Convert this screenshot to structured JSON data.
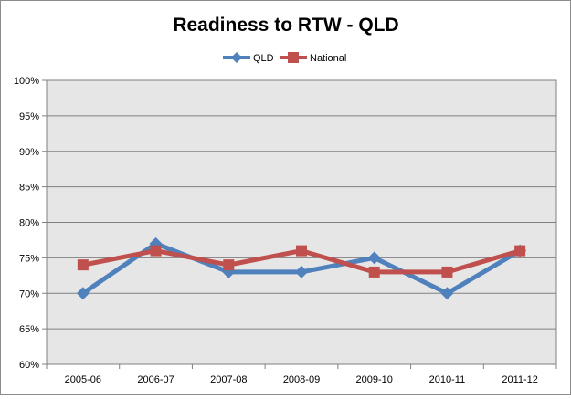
{
  "chart_data": {
    "type": "line",
    "title": "Readiness to RTW - QLD",
    "xlabel": "",
    "ylabel": "",
    "categories": [
      "2005-06",
      "2006-07",
      "2007-08",
      "2008-09",
      "2009-10",
      "2010-11",
      "2011-12"
    ],
    "series": [
      {
        "name": "QLD",
        "values": [
          70,
          77,
          73,
          73,
          75,
          70,
          76
        ],
        "color": "#4F81BD",
        "marker": "diamond"
      },
      {
        "name": "National",
        "values": [
          74,
          76,
          74,
          76,
          73,
          73,
          76
        ],
        "color": "#C0504D",
        "marker": "square"
      }
    ],
    "ylim": [
      60,
      100
    ],
    "y_ticks": [
      "60%",
      "65%",
      "70%",
      "75%",
      "80%",
      "85%",
      "90%",
      "95%",
      "100%"
    ],
    "grid": true,
    "legend": "top-center",
    "plot_background": "#E6E6E6"
  }
}
